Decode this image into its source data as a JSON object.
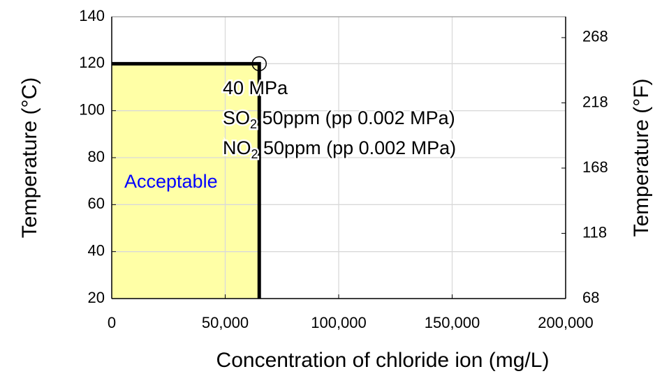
{
  "chart_data": {
    "type": "line",
    "x_label": "Concentration of chloride ion (mg/L)",
    "y_label": "Temperature (°C)",
    "y2_label": "Temperature (°F)",
    "x": [
      0,
      65000,
      65000
    ],
    "values": [
      120,
      120,
      20
    ],
    "color": "#000000",
    "fill_color": "#ffffa6",
    "marker": {
      "x": 65000,
      "y": 120
    },
    "xlim": [
      0,
      200000
    ],
    "xticks": [
      0,
      {
        "value": 50000,
        "label": "50,000"
      },
      {
        "value": 100000,
        "label": "100,000"
      },
      {
        "value": 150000,
        "label": "150,000"
      },
      {
        "value": 200000,
        "label": "200,000"
      }
    ],
    "ylim": [
      20,
      140
    ],
    "yticks": [
      20,
      40,
      60,
      80,
      100,
      120,
      140
    ],
    "y2lim": [
      68,
      284
    ],
    "y2ticks": [
      68,
      118,
      168,
      218,
      268
    ],
    "grid": true,
    "region_label": "Acceptable",
    "annotations": [
      [
        "40 MPa"
      ],
      [
        "SO",
        "2",
        " 50ppm (pp 0.002 MPa)"
      ],
      [
        "NO",
        "2",
        " 50ppm (pp 0.002 MPa)"
      ]
    ]
  }
}
